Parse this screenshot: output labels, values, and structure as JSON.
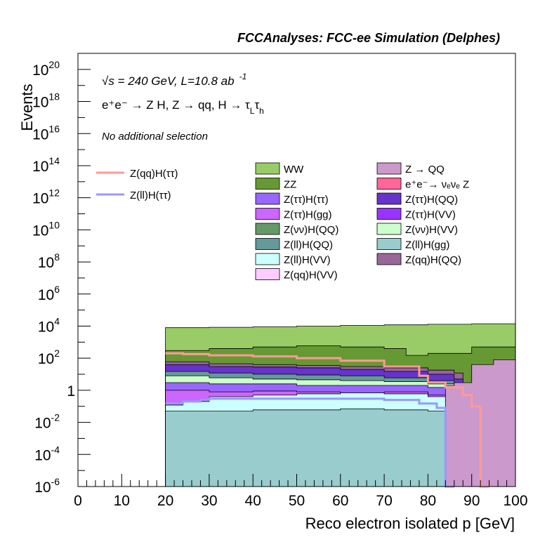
{
  "chart_data": {
    "type": "area",
    "stacked": true,
    "y_scale": "log",
    "title": "FCCAnalyses: FCC-ee Simulation (Delphes)",
    "xlabel": "Reco electron isolated p [GeV]",
    "ylabel": "Events",
    "xlim": [
      0,
      100
    ],
    "ylim": [
      1e-06,
      1e+21
    ],
    "x_ticks": [
      "0",
      "10",
      "20",
      "30",
      "40",
      "50",
      "60",
      "70",
      "80",
      "90",
      "100"
    ],
    "y_ticks": [
      {
        "base": "10",
        "exp": "-6"
      },
      {
        "base": "10",
        "exp": "-4"
      },
      {
        "base": "10",
        "exp": "-2"
      },
      {
        "base": "1",
        "exp": ""
      },
      {
        "base": "10",
        "exp": "2"
      },
      {
        "base": "10",
        "exp": "4"
      },
      {
        "base": "10",
        "exp": "6"
      },
      {
        "base": "10",
        "exp": "8"
      },
      {
        "base": "10",
        "exp": "10"
      },
      {
        "base": "10",
        "exp": "12"
      },
      {
        "base": "10",
        "exp": "14"
      },
      {
        "base": "10",
        "exp": "16"
      },
      {
        "base": "10",
        "exp": "18"
      },
      {
        "base": "10",
        "exp": "20"
      }
    ],
    "annotations": {
      "energy_lumi": "√s = 240 GeV, L=10.8 ab",
      "lumi_exp": "-1",
      "process": "e⁺e⁻ → Z H, Z → qq, H → τ",
      "process_sub1": "L",
      "process_tau2": "τ",
      "process_sub2": "h",
      "selection": "No additional selection"
    },
    "signal_legend": [
      {
        "name": "Z(qq)H(ττ)",
        "color": "#ff9999"
      },
      {
        "name": "Z(ll)H(ττ)",
        "color": "#9999ff"
      }
    ],
    "background_legend": [
      {
        "name": "WW",
        "color": "#99cc66"
      },
      {
        "name": "Z → QQ",
        "color": "#cc99cc"
      },
      {
        "name": "ZZ",
        "color": "#669933"
      },
      {
        "name": "e⁺e⁻→ νₑνₑ Z",
        "color": "#ff6699"
      },
      {
        "name": "Z(ττ)H(ττ)",
        "color": "#9966ff"
      },
      {
        "name": "Z(ττ)H(QQ)",
        "color": "#6633cc"
      },
      {
        "name": "Z(ττ)H(gg)",
        "color": "#cc66ff"
      },
      {
        "name": "Z(ττ)H(VV)",
        "color": "#9933ff"
      },
      {
        "name": "Z(νν)H(QQ)",
        "color": "#669966"
      },
      {
        "name": "Z(νν)H(VV)",
        "color": "#ccffcc"
      },
      {
        "name": "Z(ll)H(QQ)",
        "color": "#669999"
      },
      {
        "name": "Z(ll)H(gg)",
        "color": "#99cccc"
      },
      {
        "name": "Z(ll)H(VV)",
        "color": "#ccffff"
      },
      {
        "name": "Z(qq)H(QQ)",
        "color": "#996699"
      },
      {
        "name": "Z(qq)H(VV)",
        "color": "#ffccff"
      }
    ],
    "bin_width": 2,
    "stack_edges": [
      {
        "name": "Z(ll)H(gg)",
        "color": "#99cccc",
        "points": [
          [
            20,
            0.05
          ],
          [
            32,
            0.05
          ],
          [
            40,
            0.06
          ],
          [
            60,
            0.07
          ],
          [
            70,
            0.06
          ],
          [
            80,
            0.05
          ],
          [
            84,
            0.04
          ],
          [
            84,
            1e-06
          ]
        ]
      },
      {
        "name": "Z(ll)H(VV)",
        "color": "#ccffff",
        "points": [
          [
            20,
            0.12
          ],
          [
            24,
            0.2
          ],
          [
            30,
            0.4
          ],
          [
            40,
            0.5
          ],
          [
            50,
            0.6
          ],
          [
            60,
            0.7
          ],
          [
            70,
            0.6
          ],
          [
            80,
            0.4
          ],
          [
            84,
            0.2
          ],
          [
            86,
            0.1
          ]
        ]
      },
      {
        "name": "Z(ττ)H(gg)",
        "color": "#cc66ff",
        "points": [
          [
            20,
            1
          ],
          [
            30,
            0.8
          ],
          [
            40,
            0.9
          ],
          [
            50,
            0.8
          ],
          [
            60,
            0.7
          ],
          [
            70,
            0.8
          ],
          [
            80,
            0.5
          ],
          [
            86,
            0.3
          ],
          [
            88,
            0.1
          ]
        ]
      },
      {
        "name": "Z(ττ)H(ττ)",
        "color": "#9966ff",
        "points": [
          [
            20,
            3
          ],
          [
            30,
            2.5
          ],
          [
            40,
            2.5
          ],
          [
            50,
            2
          ],
          [
            60,
            2
          ],
          [
            70,
            2
          ],
          [
            80,
            1.5
          ],
          [
            86,
            0.8
          ],
          [
            88,
            0.03
          ]
        ]
      },
      {
        "name": "Z(νν)H(VV)",
        "color": "#ccffcc",
        "points": [
          [
            20,
            8
          ],
          [
            30,
            6
          ],
          [
            40,
            5
          ],
          [
            50,
            4.5
          ],
          [
            60,
            4
          ],
          [
            70,
            3.5
          ],
          [
            80,
            2.5
          ],
          [
            86,
            1.2
          ]
        ]
      },
      {
        "name": "Z(ll)H(QQ)",
        "color": "#669999",
        "points": [
          [
            20,
            15
          ],
          [
            30,
            12
          ],
          [
            40,
            10
          ],
          [
            50,
            9
          ],
          [
            60,
            8
          ],
          [
            70,
            6
          ],
          [
            80,
            4
          ],
          [
            86,
            2
          ]
        ]
      },
      {
        "name": "Z(ττ)H(QQ)",
        "color": "#6633cc",
        "points": [
          [
            20,
            40
          ],
          [
            30,
            30
          ],
          [
            40,
            28
          ],
          [
            50,
            25
          ],
          [
            60,
            20
          ],
          [
            70,
            15
          ],
          [
            80,
            10
          ],
          [
            86,
            5
          ]
        ]
      },
      {
        "name": "Z(qq)H(QQ)",
        "color": "#996699",
        "points": [
          [
            20,
            60
          ],
          [
            30,
            45
          ],
          [
            40,
            40
          ],
          [
            50,
            35
          ],
          [
            60,
            30
          ],
          [
            70,
            25
          ],
          [
            80,
            18
          ],
          [
            86,
            12
          ]
        ]
      },
      {
        "name": "ZZ",
        "color": "#669933",
        "points": [
          [
            20,
            300
          ],
          [
            30,
            400
          ],
          [
            40,
            500
          ],
          [
            50,
            600
          ],
          [
            60,
            500
          ],
          [
            70,
            400
          ],
          [
            75,
            150
          ],
          [
            80,
            200
          ],
          [
            90,
            500
          ],
          [
            100,
            700
          ]
        ]
      },
      {
        "name": "WW",
        "color": "#99cc66",
        "points": [
          [
            20,
            8000
          ],
          [
            30,
            8500
          ],
          [
            40,
            9000
          ],
          [
            50,
            10000
          ],
          [
            60,
            11000
          ],
          [
            70,
            12000
          ],
          [
            80,
            13000
          ],
          [
            90,
            14000
          ],
          [
            100,
            14000
          ]
        ]
      }
    ],
    "zqq_region": {
      "name": "Z → QQ",
      "color": "#cc99cc",
      "points": [
        [
          84,
          2
        ],
        [
          86,
          3
        ],
        [
          90,
          40
        ],
        [
          95,
          80
        ],
        [
          100,
          100
        ]
      ]
    },
    "signal_lines": [
      {
        "name": "Z(qq)H(ττ)",
        "color": "#ff9999",
        "points": [
          [
            20,
            200
          ],
          [
            24,
            180
          ],
          [
            30,
            150
          ],
          [
            40,
            130
          ],
          [
            50,
            100
          ],
          [
            60,
            70
          ],
          [
            70,
            30
          ],
          [
            78,
            8
          ],
          [
            80,
            3
          ],
          [
            84,
            1.5
          ],
          [
            88,
            0.5
          ],
          [
            90,
            0.1
          ],
          [
            92,
            1e-06
          ]
        ]
      },
      {
        "name": "Z(ll)H(ττ)",
        "color": "#9999ff",
        "points": [
          [
            20,
            0.15
          ],
          [
            24,
            0.2
          ],
          [
            28,
            0.25
          ],
          [
            30,
            0.3
          ],
          [
            40,
            0.3
          ],
          [
            50,
            0.3
          ],
          [
            60,
            0.3
          ],
          [
            70,
            0.25
          ],
          [
            78,
            0.15
          ],
          [
            82,
            0.08
          ],
          [
            84,
            1e-06
          ]
        ]
      }
    ]
  }
}
